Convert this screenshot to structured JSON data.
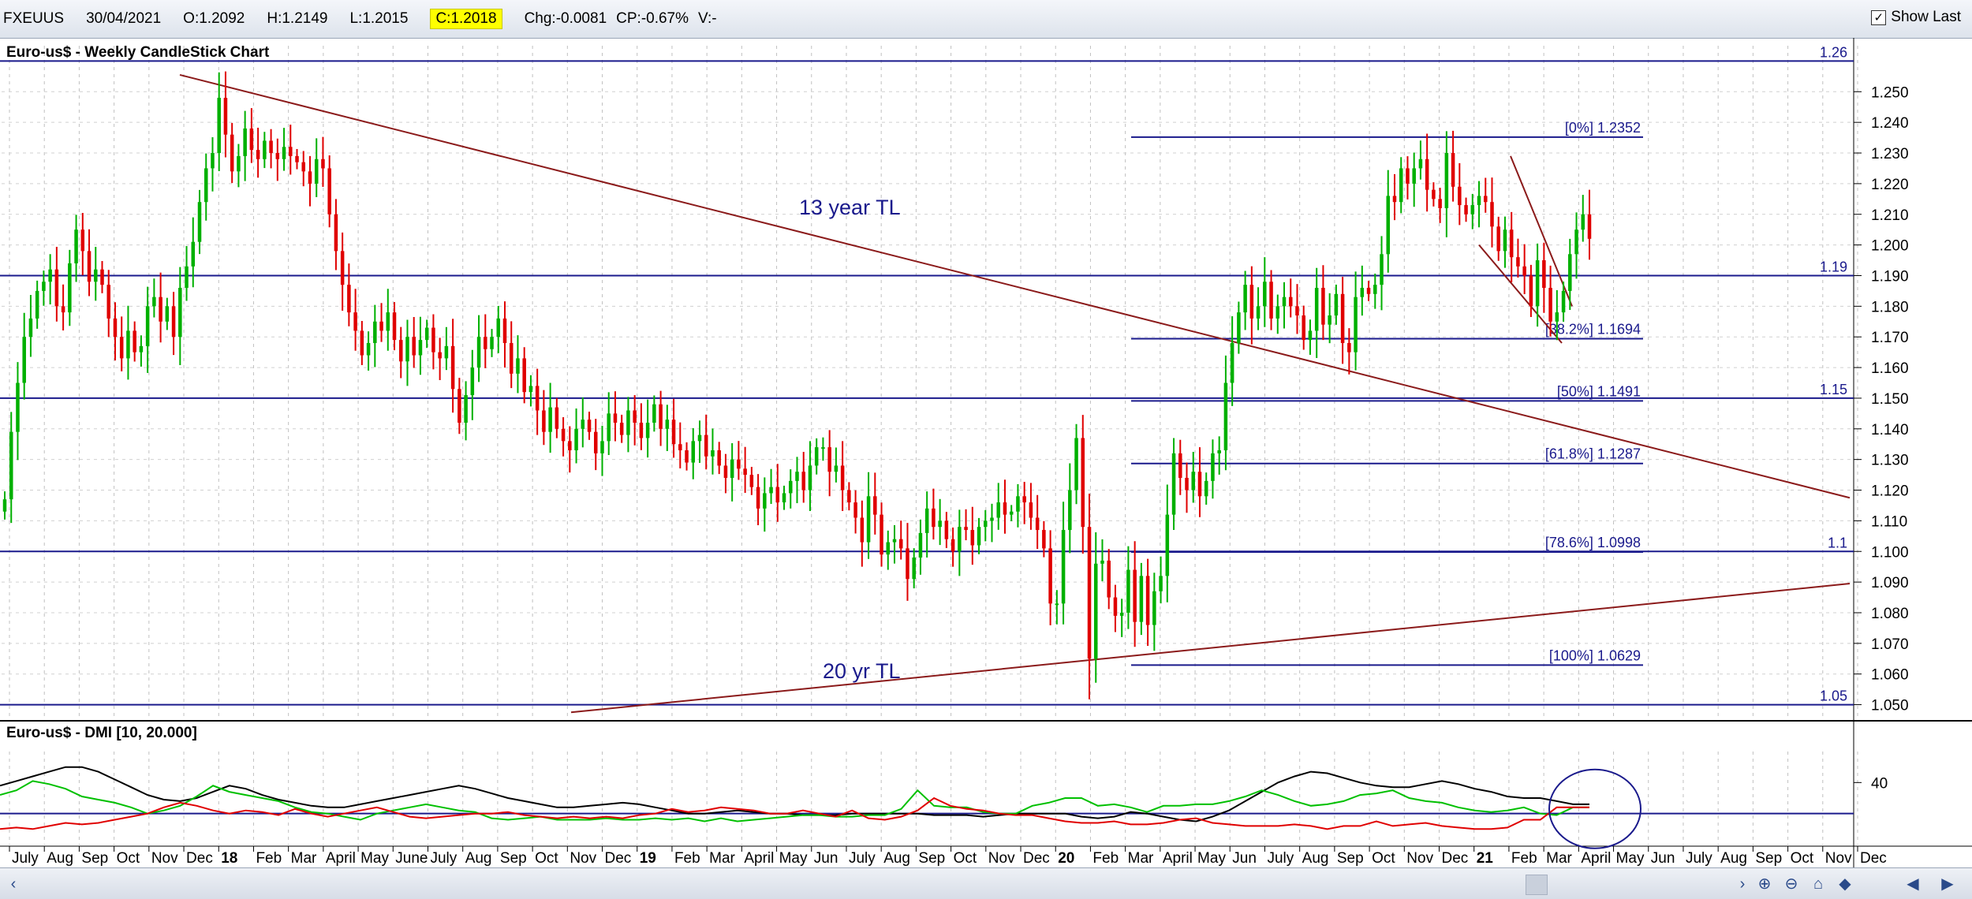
{
  "quote": {
    "symbol": "FXEUUS",
    "date": "30/04/2021",
    "open": "O:1.2092",
    "high": "H:1.2149",
    "low": "L:1.2015",
    "close": "C:1.2018",
    "change": "Chg:-0.0081",
    "change_pct": "CP:-0.67%",
    "volume": "V:-"
  },
  "show_last": {
    "label": "Show Last",
    "checked": true
  },
  "chart_data": [
    {
      "type": "candlestick",
      "title": "Euro-us$ - Weekly CandleStick Chart",
      "ylim": [
        1.045,
        1.265
      ],
      "y_ticks": [
        "1.050",
        "1.060",
        "1.070",
        "1.080",
        "1.090",
        "1.100",
        "1.110",
        "1.120",
        "1.130",
        "1.140",
        "1.150",
        "1.160",
        "1.170",
        "1.180",
        "1.190",
        "1.200",
        "1.210",
        "1.220",
        "1.230",
        "1.240",
        "1.250"
      ],
      "horizontal_levels": [
        {
          "label": "1.26",
          "value": 1.26
        },
        {
          "label": "1.19",
          "value": 1.19
        },
        {
          "label": "1.15",
          "value": 1.15
        },
        {
          "label": "1.1",
          "value": 1.1
        },
        {
          "label": "1.05",
          "value": 1.05
        }
      ],
      "fibonacci": [
        {
          "label": "[0%] 1.2352",
          "value": 1.2352
        },
        {
          "label": "[38.2%] 1.1694",
          "value": 1.1694
        },
        {
          "label": "[50%] 1.1491",
          "value": 1.1491
        },
        {
          "label": "[61.8%] 1.1287",
          "value": 1.1287
        },
        {
          "label": "[78.6%] 1.0998",
          "value": 1.0998
        },
        {
          "label": "[100%] 1.0629",
          "value": 1.0629
        }
      ],
      "annotations": [
        "13 year TL",
        "20 yr TL"
      ],
      "trendlines": [
        {
          "name": "13 year TL",
          "start": {
            "date": "2018-02",
            "value": 1.2555
          },
          "end": {
            "date": "2021-12",
            "value": 1.1175
          }
        },
        {
          "name": "20 yr TL",
          "start": {
            "date": "2018-09",
            "value": 1.0475
          },
          "end": {
            "date": "2021-12",
            "value": 1.0895
          }
        }
      ],
      "closes": [
        1.117,
        1.139,
        1.155,
        1.17,
        1.176,
        1.185,
        1.188,
        1.192,
        1.18,
        1.178,
        1.194,
        1.205,
        1.198,
        1.188,
        1.192,
        1.187,
        1.176,
        1.17,
        1.163,
        1.172,
        1.165,
        1.167,
        1.18,
        1.183,
        1.175,
        1.18,
        1.17,
        1.186,
        1.193,
        1.201,
        1.214,
        1.225,
        1.23,
        1.248,
        1.236,
        1.224,
        1.229,
        1.238,
        1.231,
        1.228,
        1.234,
        1.23,
        1.228,
        1.232,
        1.229,
        1.227,
        1.224,
        1.22,
        1.228,
        1.225,
        1.21,
        1.198,
        1.187,
        1.178,
        1.172,
        1.164,
        1.168,
        1.175,
        1.172,
        1.178,
        1.169,
        1.162,
        1.17,
        1.164,
        1.169,
        1.173,
        1.165,
        1.163,
        1.167,
        1.153,
        1.142,
        1.151,
        1.16,
        1.17,
        1.166,
        1.17,
        1.176,
        1.168,
        1.158,
        1.163,
        1.152,
        1.154,
        1.146,
        1.139,
        1.147,
        1.14,
        1.136,
        1.133,
        1.14,
        1.143,
        1.139,
        1.132,
        1.136,
        1.145,
        1.142,
        1.138,
        1.146,
        1.142,
        1.137,
        1.142,
        1.148,
        1.14,
        1.143,
        1.135,
        1.133,
        1.129,
        1.136,
        1.138,
        1.131,
        1.133,
        1.128,
        1.124,
        1.13,
        1.127,
        1.125,
        1.121,
        1.114,
        1.119,
        1.121,
        1.116,
        1.119,
        1.123,
        1.126,
        1.12,
        1.128,
        1.134,
        1.134,
        1.126,
        1.128,
        1.12,
        1.116,
        1.111,
        1.103,
        1.118,
        1.112,
        1.099,
        1.103,
        1.104,
        1.101,
        1.091,
        1.098,
        1.106,
        1.114,
        1.108,
        1.11,
        1.104,
        1.1,
        1.108,
        1.107,
        1.102,
        1.108,
        1.11,
        1.111,
        1.116,
        1.112,
        1.113,
        1.118,
        1.116,
        1.111,
        1.107,
        1.101,
        1.083,
        1.083,
        1.107,
        1.12,
        1.137,
        1.108,
        1.065,
        1.096,
        1.097,
        1.085,
        1.079,
        1.08,
        1.094,
        1.077,
        1.092,
        1.076,
        1.087,
        1.092,
        1.112,
        1.132,
        1.124,
        1.12,
        1.126,
        1.118,
        1.123,
        1.132,
        1.133,
        1.155,
        1.168,
        1.178,
        1.187,
        1.176,
        1.18,
        1.188,
        1.176,
        1.18,
        1.183,
        1.18,
        1.177,
        1.169,
        1.172,
        1.186,
        1.174,
        1.177,
        1.184,
        1.168,
        1.165,
        1.183,
        1.186,
        1.184,
        1.187,
        1.197,
        1.216,
        1.214,
        1.225,
        1.22,
        1.225,
        1.228,
        1.218,
        1.215,
        1.212,
        1.23,
        1.219,
        1.213,
        1.21,
        1.213,
        1.216,
        1.214,
        1.206,
        1.198,
        1.205,
        1.196,
        1.193,
        1.19,
        1.18,
        1.195,
        1.186,
        1.175,
        1.178,
        1.185,
        1.197,
        1.205,
        1.21,
        1.202
      ],
      "x_labels": [
        {
          "label": "July",
          "bold": false
        },
        {
          "label": "Aug",
          "bold": false
        },
        {
          "label": "Sep",
          "bold": false
        },
        {
          "label": "Oct",
          "bold": false
        },
        {
          "label": "Nov",
          "bold": false
        },
        {
          "label": "Dec",
          "bold": false
        },
        {
          "label": "18",
          "bold": true
        },
        {
          "label": "Feb",
          "bold": false
        },
        {
          "label": "Mar",
          "bold": false
        },
        {
          "label": "April",
          "bold": false
        },
        {
          "label": "May",
          "bold": false
        },
        {
          "label": "June",
          "bold": false
        },
        {
          "label": "July",
          "bold": false
        },
        {
          "label": "Aug",
          "bold": false
        },
        {
          "label": "Sep",
          "bold": false
        },
        {
          "label": "Oct",
          "bold": false
        },
        {
          "label": "Nov",
          "bold": false
        },
        {
          "label": "Dec",
          "bold": false
        },
        {
          "label": "19",
          "bold": true
        },
        {
          "label": "Feb",
          "bold": false
        },
        {
          "label": "Mar",
          "bold": false
        },
        {
          "label": "April",
          "bold": false
        },
        {
          "label": "May",
          "bold": false
        },
        {
          "label": "Jun",
          "bold": false
        },
        {
          "label": "July",
          "bold": false
        },
        {
          "label": "Aug",
          "bold": false
        },
        {
          "label": "Sep",
          "bold": false
        },
        {
          "label": "Oct",
          "bold": false
        },
        {
          "label": "Nov",
          "bold": false
        },
        {
          "label": "Dec",
          "bold": false
        },
        {
          "label": "20",
          "bold": true
        },
        {
          "label": "Feb",
          "bold": false
        },
        {
          "label": "Mar",
          "bold": false
        },
        {
          "label": "April",
          "bold": false
        },
        {
          "label": "May",
          "bold": false
        },
        {
          "label": "Jun",
          "bold": false
        },
        {
          "label": "July",
          "bold": false
        },
        {
          "label": "Aug",
          "bold": false
        },
        {
          "label": "Sep",
          "bold": false
        },
        {
          "label": "Oct",
          "bold": false
        },
        {
          "label": "Nov",
          "bold": false
        },
        {
          "label": "Dec",
          "bold": false
        },
        {
          "label": "21",
          "bold": true
        },
        {
          "label": "Feb",
          "bold": false
        },
        {
          "label": "Mar",
          "bold": false
        },
        {
          "label": "April",
          "bold": false
        },
        {
          "label": "May",
          "bold": false
        },
        {
          "label": "Jun",
          "bold": false
        },
        {
          "label": "July",
          "bold": false
        },
        {
          "label": "Aug",
          "bold": false
        },
        {
          "label": "Sep",
          "bold": false
        },
        {
          "label": "Oct",
          "bold": false
        },
        {
          "label": "Nov",
          "bold": false
        },
        {
          "label": "Dec",
          "bold": false
        }
      ],
      "colors": {
        "up": "#00b000",
        "down": "#e00000",
        "level": "#1a1a8c",
        "trendline": "#8b1a1a",
        "fib_label": "#1a1a8c"
      }
    },
    {
      "type": "line",
      "title": "Euro-us$ - DMI [10, 20.000]",
      "ylim": [
        0,
        60
      ],
      "y_ticks": [
        "40"
      ],
      "reference_line": 20,
      "series": [
        {
          "color": "#000000",
          "values": [
            38,
            41,
            44,
            47,
            50,
            50,
            47,
            42,
            37,
            32,
            29,
            28,
            30,
            34,
            38,
            36,
            32,
            29,
            27,
            25,
            24,
            24,
            26,
            28,
            30,
            32,
            34,
            36,
            38,
            36,
            33,
            30,
            28,
            26,
            24,
            24,
            25,
            26,
            27,
            26,
            24,
            22,
            20,
            20,
            21,
            22,
            21,
            20,
            20,
            19,
            19,
            19,
            20,
            20,
            20,
            20,
            20,
            19,
            19,
            19,
            18,
            19,
            20,
            20,
            20,
            20,
            18,
            17,
            18,
            21,
            20,
            18,
            16,
            15,
            18,
            22,
            28,
            34,
            40,
            44,
            47,
            46,
            43,
            40,
            38,
            37,
            37,
            39,
            41,
            39,
            36,
            34,
            31,
            30,
            30,
            28,
            26,
            26
          ]
        },
        {
          "color": "#00c000",
          "values": [
            32,
            35,
            41,
            39,
            36,
            31,
            29,
            27,
            24,
            20,
            22,
            25,
            31,
            38,
            34,
            32,
            30,
            28,
            24,
            21,
            20,
            18,
            16,
            20,
            22,
            24,
            26,
            24,
            22,
            21,
            17,
            16,
            17,
            18,
            16,
            16,
            16,
            17,
            16,
            16,
            17,
            16,
            17,
            15,
            17,
            15,
            16,
            17,
            18,
            19,
            19,
            18,
            18,
            19,
            19,
            23,
            35,
            25,
            24,
            24,
            21,
            20,
            20,
            25,
            27,
            30,
            30,
            25,
            26,
            24,
            21,
            25,
            25,
            26,
            26,
            28,
            31,
            35,
            32,
            28,
            25,
            26,
            28,
            32,
            33,
            35,
            30,
            28,
            27,
            24,
            22,
            21,
            22,
            24,
            20,
            19,
            24,
            24
          ]
        },
        {
          "color": "#e00000",
          "values": [
            10,
            11,
            10,
            12,
            14,
            13,
            14,
            16,
            18,
            20,
            24,
            27,
            25,
            22,
            20,
            22,
            21,
            19,
            23,
            20,
            18,
            20,
            22,
            24,
            21,
            18,
            17,
            18,
            19,
            20,
            20,
            21,
            19,
            18,
            17,
            18,
            17,
            18,
            17,
            19,
            20,
            23,
            21,
            22,
            24,
            23,
            22,
            20,
            20,
            22,
            20,
            18,
            22,
            17,
            16,
            18,
            22,
            30,
            25,
            23,
            22,
            20,
            19,
            19,
            17,
            15,
            14,
            14,
            15,
            13,
            13,
            14,
            16,
            17,
            14,
            13,
            12,
            12,
            12,
            13,
            12,
            10,
            12,
            12,
            15,
            12,
            13,
            14,
            12,
            11,
            10,
            10,
            11,
            16,
            16,
            24,
            24,
            24
          ]
        }
      ],
      "colors": {
        "reference": "#1a1a8c",
        "circle": "#1a1a8c"
      }
    }
  ]
}
